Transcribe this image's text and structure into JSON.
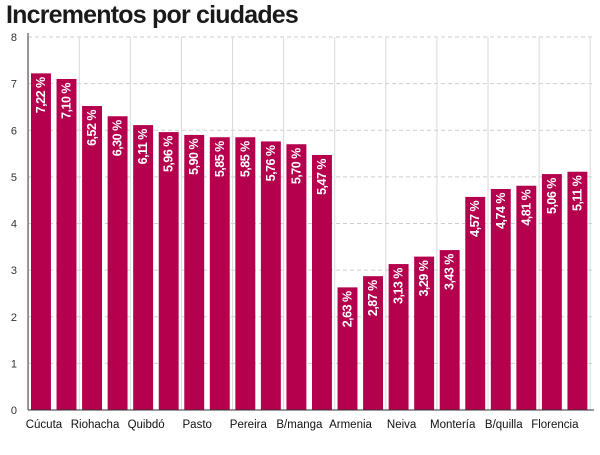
{
  "chart_data": {
    "type": "bar",
    "title": "Incrementos por ciudades",
    "xlabel": "",
    "ylabel": "",
    "ylim": [
      0,
      8
    ],
    "yticks": [
      0,
      1,
      2,
      3,
      4,
      5,
      6,
      7,
      8
    ],
    "bar_color": "#b5004e",
    "categories": [
      "Cúcuta",
      "",
      "Riohacha",
      "",
      "Quibdó",
      "",
      "Pasto",
      "",
      "Pereira",
      "",
      "B/manga",
      "",
      "Armenia",
      "",
      "Neiva",
      "",
      "Montería",
      "",
      "B/quilla",
      "",
      "Florencia",
      ""
    ],
    "values": [
      7.22,
      7.1,
      6.52,
      6.3,
      6.11,
      5.96,
      5.9,
      5.85,
      5.85,
      5.76,
      5.7,
      5.47,
      2.63,
      2.87,
      3.13,
      3.29,
      3.43,
      4.57,
      4.74,
      4.81,
      5.06,
      5.11
    ],
    "data_labels": [
      "7,22 %",
      "7,10 %",
      "6,52 %",
      "6,30 %",
      "6,11 %",
      "5,96 %",
      "5,90 %",
      "5,85 %",
      "5,85 %",
      "5,76 %",
      "5,70 %",
      "5,47 %",
      "2,63 %",
      "2,87 %",
      "3,13 %",
      "3,29 %",
      "3,43 %",
      "4,57 %",
      "4,74 %",
      "4,81 %",
      "5,06 %",
      "5,11 %"
    ],
    "x_tick_labels": [
      "Cúcuta",
      "Riohacha",
      "Quibdó",
      "Pasto",
      "Pereira",
      "B/manga",
      "Armenia",
      "Neiva",
      "Montería",
      "B/quilla",
      "Florencia"
    ]
  }
}
